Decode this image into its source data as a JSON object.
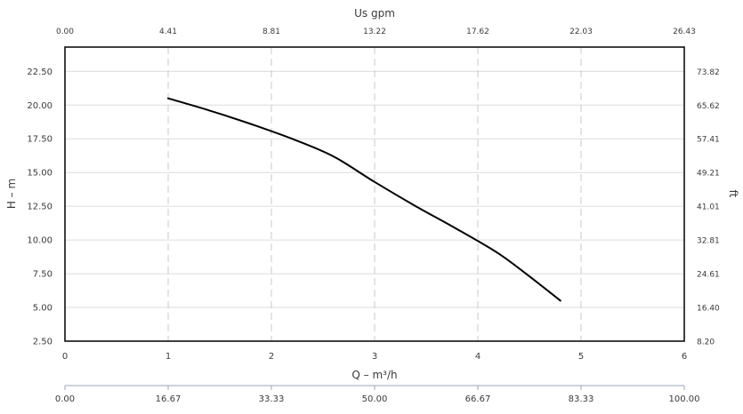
{
  "chart_data": {
    "type": "line",
    "x": [
      1.0,
      1.4,
      1.8,
      2.2,
      2.6,
      3.0,
      3.4,
      3.8,
      4.2,
      4.5,
      4.8
    ],
    "series": [
      {
        "values": [
          20.5,
          19.6,
          18.6,
          17.5,
          16.2,
          14.3,
          12.5,
          10.8,
          9.0,
          7.3,
          5.5
        ]
      }
    ],
    "xlabel": "Q – m³/h",
    "ylabel": "H – m",
    "xlim": [
      0,
      6
    ],
    "ylim": [
      2.5,
      24.3
    ],
    "x_ticks": [
      "0",
      "1",
      "2",
      "3",
      "4",
      "5",
      "6"
    ],
    "y_ticks": [
      "2.50",
      "5.00",
      "7.50",
      "10.00",
      "12.50",
      "15.00",
      "17.50",
      "20.00",
      "22.50"
    ],
    "top_axis": {
      "label": "Us gpm",
      "ticks": [
        "0.00",
        "4.41",
        "8.81",
        "13.22",
        "17.62",
        "22.03",
        "26.43"
      ]
    },
    "right_axis": {
      "label": "ft",
      "ticks": [
        "8.20",
        "16.40",
        "24.61",
        "32.81",
        "41.01",
        "49.21",
        "57.41",
        "65.62",
        "73.82"
      ]
    },
    "bottom_axis": {
      "ticks": [
        "0.00",
        "16.67",
        "33.33",
        "50.00",
        "66.67",
        "83.33",
        "100.00"
      ]
    },
    "grid": true,
    "colors": {
      "curve": "#000000",
      "frame": "#000000",
      "grid": "#c8c8c8",
      "text": "#3a3a3a",
      "bottom_axis_line": "#9aa7b8"
    }
  }
}
